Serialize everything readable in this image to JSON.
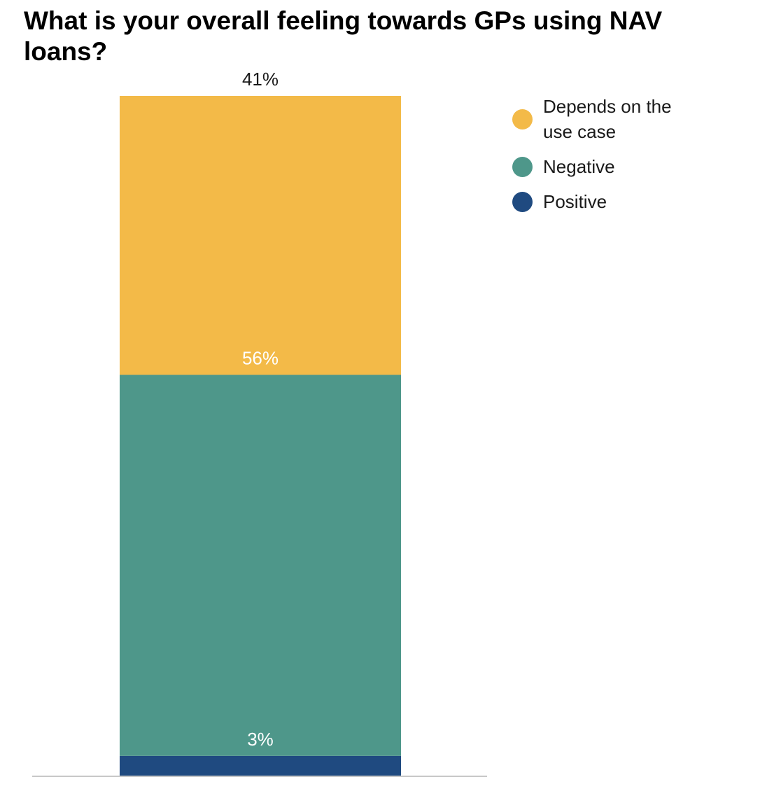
{
  "chart_data": {
    "type": "bar",
    "stacked": true,
    "title": "What is your overall feeling towards GPs using NAV loans?",
    "xlabel": "",
    "ylabel": "",
    "ylim": [
      0,
      100
    ],
    "categories": [
      ""
    ],
    "series": [
      {
        "name": "Positive",
        "values": [
          3
        ],
        "label": "3%",
        "color": "#1f4a80",
        "label_color": "#ffffff"
      },
      {
        "name": "Negative",
        "values": [
          56
        ],
        "label": "56%",
        "color": "#4e978a",
        "label_color": "#ffffff"
      },
      {
        "name": "Depends on the use case",
        "values": [
          41
        ],
        "label": "41%",
        "color": "#f3ba48",
        "label_color": "#1a1a1a"
      }
    ],
    "legend": {
      "placement": "top-right",
      "order": [
        "Depends on the use case",
        "Negative",
        "Positive"
      ]
    },
    "grid": false,
    "baseline_color": "#c8c8c8"
  }
}
